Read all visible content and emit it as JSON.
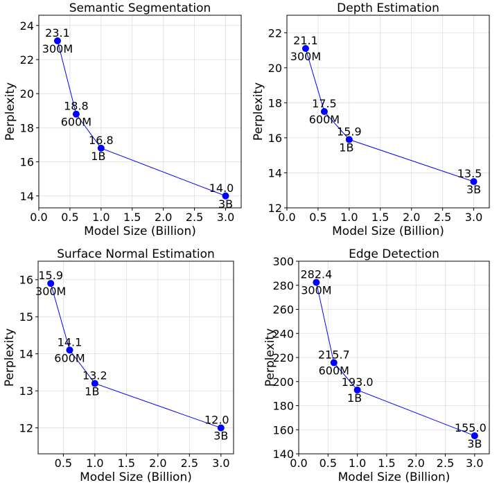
{
  "figure": {
    "line_color": "#0000ff",
    "marker_color": "#0000ff",
    "grid_color": "#dddddd"
  },
  "chart_data": [
    {
      "type": "line",
      "title": "Semantic Segmentation",
      "xlabel": "Model Size (Billion)",
      "ylabel": "Perplexity",
      "xlim": [
        0.0,
        3.25
      ],
      "ylim": [
        13.3,
        24.6
      ],
      "xticks": [
        0.0,
        0.5,
        1.0,
        1.5,
        2.0,
        2.5,
        3.0
      ],
      "xtick_labels": [
        "0.0",
        "0.5",
        "1.0",
        "1.5",
        "2.0",
        "2.5",
        "3.0"
      ],
      "yticks": [
        14,
        16,
        18,
        20,
        22,
        24
      ],
      "ytick_labels": [
        "14",
        "16",
        "18",
        "20",
        "22",
        "24"
      ],
      "x": [
        0.3,
        0.6,
        1.0,
        3.0
      ],
      "y": [
        23.1,
        18.8,
        16.8,
        14.0
      ],
      "value_labels": [
        "23.1",
        "18.8",
        "16.8",
        "14.0"
      ],
      "size_labels": [
        "300M",
        "600M",
        "1B",
        "3B"
      ]
    },
    {
      "type": "line",
      "title": "Depth Estimation",
      "xlabel": "Model Size (Billion)",
      "ylabel": "Perplexity",
      "xlim": [
        0.0,
        3.25
      ],
      "ylim": [
        12.0,
        23.0
      ],
      "xticks": [
        0.0,
        0.5,
        1.0,
        1.5,
        2.0,
        2.5,
        3.0
      ],
      "xtick_labels": [
        "0.0",
        "0.5",
        "1.0",
        "1.5",
        "2.0",
        "2.5",
        "3.0"
      ],
      "yticks": [
        12,
        14,
        16,
        18,
        20,
        22
      ],
      "ytick_labels": [
        "12",
        "14",
        "16",
        "18",
        "20",
        "22"
      ],
      "x": [
        0.3,
        0.6,
        1.0,
        3.0
      ],
      "y": [
        21.1,
        17.5,
        15.9,
        13.5
      ],
      "value_labels": [
        "21.1",
        "17.5",
        "15.9",
        "13.5"
      ],
      "size_labels": [
        "300M",
        "600M",
        "1B",
        "3B"
      ]
    },
    {
      "type": "line",
      "title": "Surface Normal Estimation",
      "xlabel": "Model Size (Billion)",
      "ylabel": "Perplexity",
      "xlim": [
        0.1,
        3.2
      ],
      "ylim": [
        11.3,
        16.5
      ],
      "xticks": [
        0.5,
        1.0,
        1.5,
        2.0,
        2.5,
        3.0
      ],
      "xtick_labels": [
        "0.5",
        "1.0",
        "1.5",
        "2.0",
        "2.5",
        "3.0"
      ],
      "yticks": [
        12,
        13,
        14,
        15,
        16
      ],
      "ytick_labels": [
        "12",
        "13",
        "14",
        "15",
        "16"
      ],
      "x": [
        0.3,
        0.6,
        1.0,
        3.0
      ],
      "y": [
        15.9,
        14.1,
        13.2,
        12.0
      ],
      "value_labels": [
        "15.9",
        "14.1",
        "13.2",
        "12.0"
      ],
      "size_labels": [
        "300M",
        "600M",
        "1B",
        "3B"
      ]
    },
    {
      "type": "line",
      "title": "Edge Detection",
      "xlabel": "Model Size (Billion)",
      "ylabel": "Perplexity",
      "xlim": [
        0.0,
        3.25
      ],
      "ylim": [
        140,
        300
      ],
      "xticks": [
        0.0,
        0.5,
        1.0,
        1.5,
        2.0,
        2.5,
        3.0
      ],
      "xtick_labels": [
        "0.0",
        "0.5",
        "1.0",
        "1.5",
        "2.0",
        "2.5",
        "3.0"
      ],
      "yticks": [
        140,
        160,
        180,
        200,
        220,
        240,
        260,
        280,
        300
      ],
      "ytick_labels": [
        "140",
        "160",
        "180",
        "200",
        "220",
        "240",
        "260",
        "280",
        "300"
      ],
      "x": [
        0.3,
        0.6,
        1.0,
        3.0
      ],
      "y": [
        282.4,
        215.7,
        193.0,
        155.0
      ],
      "value_labels": [
        "282.4",
        "215.7",
        "193.0",
        "155.0"
      ],
      "size_labels": [
        "300M",
        "600M",
        "1B",
        "3B"
      ]
    }
  ]
}
